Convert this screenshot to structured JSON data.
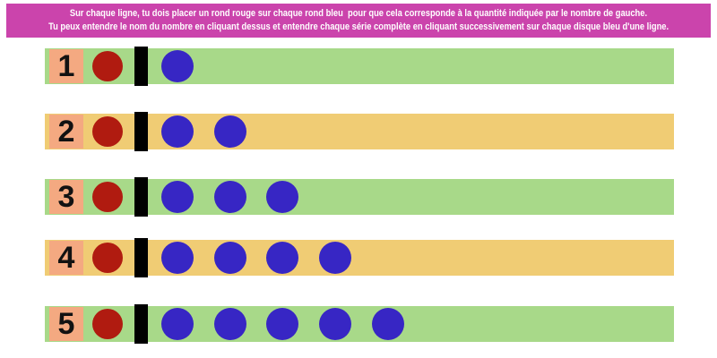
{
  "banner": {
    "line1": "Sur chaque ligne, tu dois placer un rond rouge sur chaque rond bleu  pour que cela corresponde à la quantité indiquée par le nombre de gauche.",
    "line2": "Tu peux entendre le nom du nombre en cliquant dessus et entendre chaque série complète en cliquant successivement sur chaque disque bleu d'une ligne.",
    "bg": "#cb44ac",
    "fg": "#ffffff"
  },
  "rows": [
    {
      "number": "1",
      "band_color": "#a8d989",
      "blue_count": 1
    },
    {
      "number": "2",
      "band_color": "#f0cc74",
      "blue_count": 2
    },
    {
      "number": "3",
      "band_color": "#a8d989",
      "blue_count": 3
    },
    {
      "number": "4",
      "band_color": "#f0cc74",
      "blue_count": 4
    },
    {
      "number": "5",
      "band_color": "#a8d989",
      "blue_count": 5
    }
  ],
  "colors": {
    "number_cell": "#f4a981",
    "number_text": "#121212",
    "red_disc": "#b01b10",
    "blue_disc": "#3726c4",
    "divider_bar": "#000000",
    "green_band": "#a8d989",
    "orange_band": "#f0cc74"
  }
}
